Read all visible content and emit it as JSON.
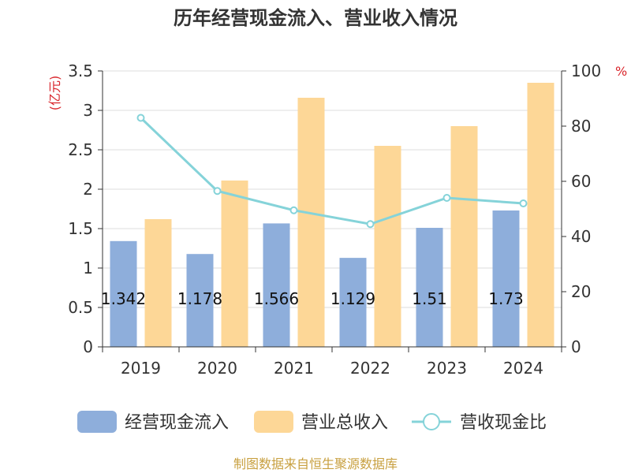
{
  "chart_data": {
    "type": "bar",
    "title": "历年经营现金流入、营业收入情况",
    "categories": [
      "2019",
      "2020",
      "2021",
      "2022",
      "2023",
      "2024"
    ],
    "left_axis": {
      "unit": "(亿元)",
      "ylim": [
        0,
        3.5
      ],
      "ticks": [
        "0",
        "0.5",
        "1",
        "1.5",
        "2",
        "2.5",
        "3",
        "3.5"
      ]
    },
    "right_axis": {
      "unit": "%",
      "ylim": [
        0,
        100
      ],
      "ticks": [
        "0",
        "20",
        "40",
        "60",
        "80",
        "100"
      ]
    },
    "series": [
      {
        "name": "经营现金流入",
        "kind": "bar",
        "axis": "left",
        "color": "#8eaedb",
        "values": [
          1.342,
          1.178,
          1.566,
          1.129,
          1.51,
          1.73
        ],
        "labels": [
          "1.342",
          "1.178",
          "1.566",
          "1.129",
          "1.51",
          "1.73"
        ]
      },
      {
        "name": "营业总收入",
        "kind": "bar",
        "axis": "left",
        "color": "#fdd797",
        "values": [
          1.62,
          2.11,
          3.16,
          2.55,
          2.8,
          3.35
        ]
      },
      {
        "name": "营收现金比",
        "kind": "line",
        "axis": "right",
        "color": "#85d3d9",
        "values": [
          83,
          56.5,
          49.5,
          44.5,
          54,
          52
        ]
      }
    ],
    "legend_position": "bottom",
    "grid": true
  },
  "source": "制图数据来自恒生聚源数据库"
}
